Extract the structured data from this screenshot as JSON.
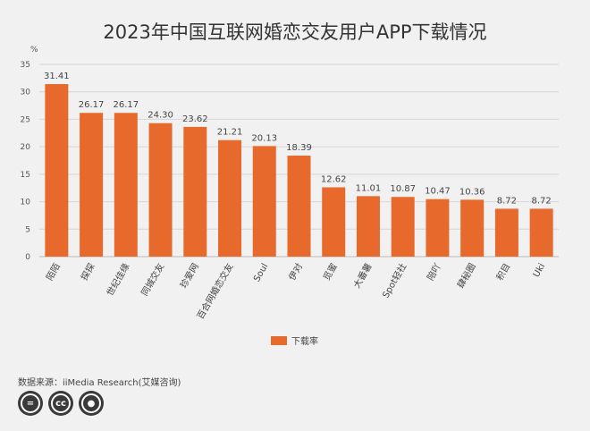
{
  "title": "2023年中国互联网婚恋交友用户APP下载情况",
  "source": "数据来源：iiMedia Research(艾媒咨询)",
  "license_icons": [
    "cc-equals-icon",
    "cc-icon",
    "cc-person-icon"
  ],
  "chart_data": {
    "type": "bar",
    "title": "2023年中国互联网婚恋交友用户APP下载情况",
    "ylabel": "%",
    "ylim": [
      0,
      35
    ],
    "yticks": [
      0,
      5,
      10,
      15,
      20,
      25,
      30,
      35
    ],
    "grid": true,
    "legend_position": "bottom",
    "bar_color": "#e8692c",
    "categories": [
      "陌陌",
      "探探",
      "世纪佳缘",
      "同城交友",
      "珍爱网",
      "百合网婚恋交友",
      "Soul",
      "伊对",
      "觅蜜",
      "大番薯",
      "Spot轻社",
      "陪吖",
      "肆秘圈",
      "积目",
      "Uki"
    ],
    "series": [
      {
        "name": "下载率",
        "values": [
          31.41,
          26.17,
          26.17,
          24.3,
          23.62,
          21.21,
          20.13,
          18.39,
          12.62,
          11.01,
          10.87,
          10.47,
          10.36,
          8.72,
          8.72
        ],
        "labels": [
          "31.41",
          "26.17",
          "26.17",
          "24.30",
          "23.62",
          "21.21",
          "20.13",
          "18.39",
          "12.62",
          "11.01",
          "10.87",
          "10.47",
          "10.36",
          "8.72",
          "8.72"
        ]
      }
    ]
  }
}
